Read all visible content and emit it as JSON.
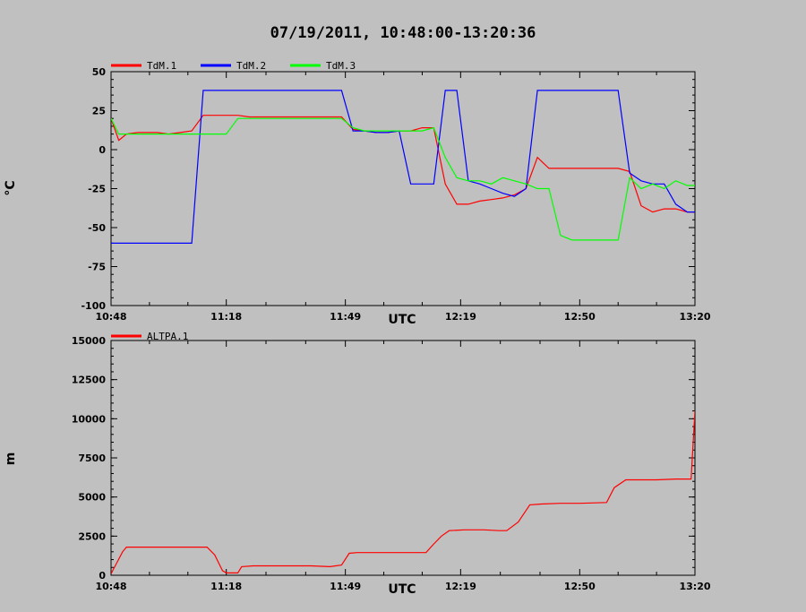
{
  "title": "07/19/2011, 10:48:00-13:20:36",
  "chart_data": [
    {
      "type": "line",
      "xlabel": "UTC",
      "ylabel": "°C",
      "xlim": [
        "10:48",
        "13:20"
      ],
      "ylim": [
        -100,
        50
      ],
      "x_ticks": [
        "10:48",
        "11:18",
        "11:49",
        "12:19",
        "12:50",
        "13:20"
      ],
      "y_ticks": [
        "50",
        "25",
        "0",
        "-25",
        "-50",
        "-75",
        "-100"
      ],
      "grid": false,
      "legend_position": "top-left",
      "x": [
        "10:48",
        "10:50",
        "10:52",
        "10:55",
        "10:58",
        "11:00",
        "11:03",
        "11:06",
        "11:09",
        "11:12",
        "11:15",
        "11:18",
        "11:21",
        "11:24",
        "11:27",
        "11:30",
        "11:33",
        "11:36",
        "11:39",
        "11:42",
        "11:45",
        "11:48",
        "11:51",
        "11:54",
        "11:57",
        "12:00",
        "12:03",
        "12:06",
        "12:09",
        "12:12",
        "12:15",
        "12:18",
        "12:21",
        "12:24",
        "12:27",
        "12:30",
        "12:33",
        "12:36",
        "12:39",
        "12:42",
        "12:45",
        "12:48",
        "12:51",
        "12:54",
        "12:57",
        "13:00",
        "13:03",
        "13:06",
        "13:09",
        "13:12",
        "13:15",
        "13:18",
        "13:20"
      ],
      "series": [
        {
          "name": "TdM.1",
          "color": "#ff0000",
          "values": [
            20,
            6,
            10,
            11,
            11,
            11,
            10,
            11,
            12,
            22,
            22,
            22,
            22,
            21,
            21,
            21,
            21,
            21,
            21,
            21,
            21,
            21,
            13,
            12,
            11,
            11,
            12,
            12,
            14,
            14,
            -22,
            -35,
            -35,
            -33,
            -32,
            -31,
            -29,
            -25,
            -5,
            -12,
            -12,
            -12,
            -12,
            -12,
            -12,
            -12,
            -14,
            -36,
            -40,
            -38,
            -38,
            -40,
            -40
          ]
        },
        {
          "name": "TdM.2",
          "color": "#0000ff",
          "values": [
            -60,
            -60,
            -60,
            -60,
            -60,
            -60,
            -60,
            -60,
            -60,
            38,
            38,
            38,
            38,
            38,
            38,
            38,
            38,
            38,
            38,
            38,
            38,
            38,
            12,
            12,
            11,
            11,
            12,
            -22,
            -22,
            -22,
            38,
            38,
            -20,
            -22,
            -25,
            -28,
            -30,
            -25,
            38,
            38,
            38,
            38,
            38,
            38,
            38,
            38,
            -15,
            -20,
            -22,
            -22,
            -35,
            -40,
            -40
          ]
        },
        {
          "name": "TdM.3",
          "color": "#00ff00",
          "values": [
            20,
            10,
            10,
            10,
            10,
            10,
            10,
            10,
            10,
            10,
            10,
            10,
            20,
            20,
            20,
            20,
            20,
            20,
            20,
            20,
            20,
            20,
            14,
            12,
            12,
            12,
            12,
            12,
            12,
            14,
            -5,
            -18,
            -20,
            -20,
            -22,
            -18,
            -20,
            -22,
            -25,
            -25,
            -55,
            -58,
            -58,
            -58,
            -58,
            -58,
            -18,
            -25,
            -22,
            -25,
            -20,
            -23,
            -23
          ]
        }
      ]
    },
    {
      "type": "line",
      "xlabel": "UTC",
      "ylabel": "m",
      "xlim": [
        "10:48",
        "13:20"
      ],
      "ylim": [
        0,
        15000
      ],
      "x_ticks": [
        "10:48",
        "11:18",
        "11:49",
        "12:19",
        "12:50",
        "13:20"
      ],
      "y_ticks": [
        "15000",
        "12500",
        "10000",
        "7500",
        "5000",
        "2500",
        "0"
      ],
      "grid": false,
      "legend_position": "top-left",
      "x": [
        "10:48",
        "10:51",
        "10:52",
        "10:55",
        "10:58",
        "11:01",
        "11:04",
        "11:07",
        "11:10",
        "11:13",
        "11:15",
        "11:17",
        "11:18",
        "11:21",
        "11:22",
        "11:25",
        "11:30",
        "11:35",
        "11:40",
        "11:45",
        "11:48",
        "11:50",
        "11:52",
        "11:55",
        "12:00",
        "12:05",
        "12:10",
        "12:12",
        "12:14",
        "12:16",
        "12:20",
        "12:25",
        "12:29",
        "12:31",
        "12:34",
        "12:37",
        "12:40",
        "12:45",
        "12:50",
        "12:57",
        "12:59",
        "13:02",
        "13:05",
        "13:10",
        "13:15",
        "13:19",
        "13:20"
      ],
      "series": [
        {
          "name": "ALTPA.1",
          "color": "#ff0000",
          "values": [
            100,
            1500,
            1800,
            1800,
            1800,
            1800,
            1800,
            1800,
            1800,
            1800,
            1300,
            300,
            150,
            150,
            550,
            600,
            600,
            600,
            600,
            550,
            650,
            1400,
            1450,
            1450,
            1450,
            1450,
            1450,
            2000,
            2500,
            2850,
            2900,
            2900,
            2850,
            2850,
            3400,
            4500,
            4550,
            4600,
            4600,
            4650,
            5600,
            6100,
            6100,
            6100,
            6150,
            6150,
            10500
          ]
        }
      ]
    }
  ]
}
